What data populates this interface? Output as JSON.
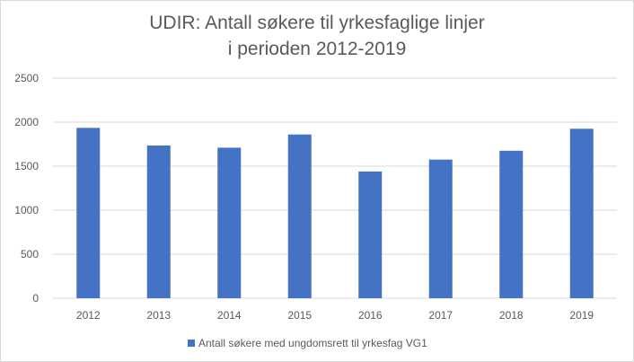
{
  "chart_data": {
    "type": "bar",
    "title_lines": [
      "UDIR: Antall søkere til yrkesfaglige linjer",
      "i perioden 2012-2019"
    ],
    "categories": [
      "2012",
      "2013",
      "2014",
      "2015",
      "2016",
      "2017",
      "2018",
      "2019"
    ],
    "series": [
      {
        "name": "Antall søkere med ungdomsrett til yrkesfag VG1",
        "values": [
          1935,
          1735,
          1710,
          1860,
          1440,
          1575,
          1675,
          1925
        ]
      }
    ],
    "ylim": [
      0,
      2500
    ],
    "yticks": [
      "0",
      "500",
      "1000",
      "1500",
      "2000",
      "2500"
    ],
    "xlabel": "",
    "ylabel": "",
    "grid": true,
    "legend_position": "bottom",
    "colors": {
      "bar": "#4472c4",
      "grid": "#d9d9d9",
      "text": "#595959"
    }
  }
}
